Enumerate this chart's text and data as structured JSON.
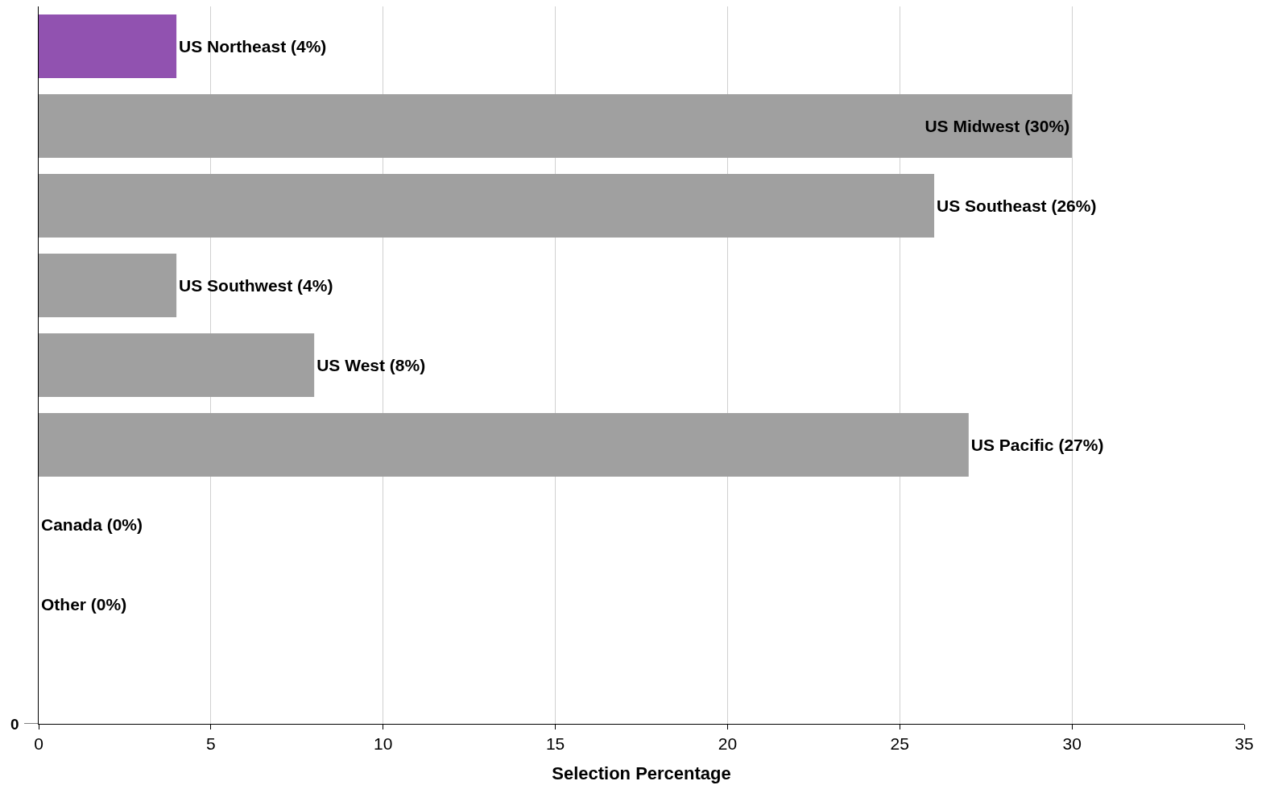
{
  "chart_data": {
    "type": "bar",
    "orientation": "horizontal",
    "xlabel": "Selection Percentage",
    "categories": [
      "US Northeast",
      "US Midwest",
      "US Southeast",
      "US Southwest",
      "US West",
      "US Pacific",
      "Canada",
      "Other",
      null
    ],
    "values": [
      4,
      30,
      26,
      4,
      8,
      27,
      0,
      0,
      null
    ],
    "value_labels": [
      "(4%)",
      "(30%)",
      "(26%)",
      "(4%)",
      "(8%)",
      "(27%)",
      "(0%)",
      "(0%)",
      null
    ],
    "colors": [
      "#9152b0",
      "#a0a0a0",
      "#a0a0a0",
      "#a0a0a0",
      "#a0a0a0",
      "#a0a0a0",
      "#a0a0a0",
      "#a0a0a0",
      "#a0a0a0"
    ],
    "xlim": [
      0,
      35
    ],
    "xticks": [
      0,
      5,
      10,
      15,
      20,
      25,
      30,
      35
    ],
    "grid": "x",
    "annotations": [
      "0"
    ]
  }
}
